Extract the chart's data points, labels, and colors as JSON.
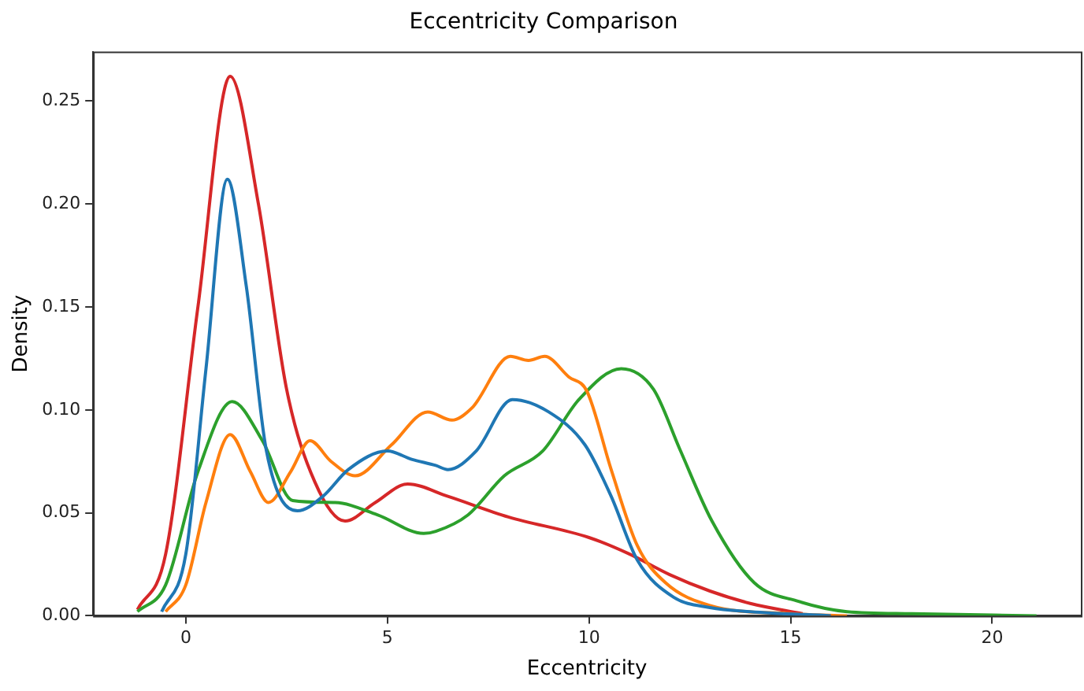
{
  "chart_data": {
    "type": "line",
    "title": "Eccentricity Comparison",
    "xlabel": "Eccentricity",
    "ylabel": "Density",
    "xlim": [
      -2.3,
      22.2
    ],
    "ylim": [
      0,
      0.274
    ],
    "xticks": [
      0,
      5,
      10,
      15,
      20
    ],
    "yticks": [
      {
        "value": 0,
        "label": "0.00"
      },
      {
        "value": 0.05,
        "label": "0.05"
      },
      {
        "value": 0.1,
        "label": "0.10"
      },
      {
        "value": 0.15,
        "label": "0.15"
      },
      {
        "value": 0.2,
        "label": "0.20"
      },
      {
        "value": 0.25,
        "label": "0.25"
      }
    ],
    "grid": false,
    "legend": false,
    "series": [
      {
        "color": "#1f77b4",
        "x": [
          -0.6,
          0,
          0.5,
          1.03,
          1.5,
          2,
          2.77,
          3.4,
          4.03,
          5.0,
          5.6,
          6.2,
          6.5,
          7.2,
          8.1,
          9.0,
          9.9,
          10.55,
          11.2,
          12.1,
          13,
          14,
          16
        ],
        "values": [
          0.002,
          0.03,
          0.12,
          0.212,
          0.16,
          0.08,
          0.051,
          0.058,
          0.071,
          0.08,
          0.076,
          0.073,
          0.071,
          0.08,
          0.105,
          0.099,
          0.083,
          0.058,
          0.027,
          0.009,
          0.004,
          0.002,
          0
        ]
      },
      {
        "color": "#ff7f0e",
        "x": [
          -0.5,
          0,
          0.5,
          1.1,
          1.6,
          2.05,
          2.6,
          3.08,
          3.6,
          4.2,
          5.1,
          6.0,
          6.6,
          7.1,
          8.05,
          8.5,
          8.9,
          9.5,
          9.95,
          10.55,
          11.2,
          11.9,
          13,
          15,
          16.4
        ],
        "values": [
          0.002,
          0.015,
          0.055,
          0.088,
          0.07,
          0.055,
          0.07,
          0.085,
          0.075,
          0.068,
          0.083,
          0.099,
          0.095,
          0.101,
          0.126,
          0.124,
          0.126,
          0.116,
          0.109,
          0.071,
          0.034,
          0.016,
          0.005,
          0.001,
          0
        ]
      },
      {
        "color": "#2ca02c",
        "x": [
          -1.2,
          -0.5,
          0.3,
          1.15,
          1.9,
          2.65,
          3.7,
          4.75,
          5.9,
          6.2,
          7.0,
          7.9,
          8.85,
          9.75,
          10.8,
          11.6,
          12.25,
          13.05,
          14.1,
          15.2,
          16.4,
          18,
          21.1
        ],
        "values": [
          0.002,
          0.015,
          0.07,
          0.104,
          0.085,
          0.056,
          0.055,
          0.049,
          0.04,
          0.041,
          0.049,
          0.068,
          0.08,
          0.105,
          0.12,
          0.11,
          0.081,
          0.046,
          0.016,
          0.007,
          0.002,
          0.001,
          0
        ]
      },
      {
        "color": "#d62728",
        "x": [
          -1.2,
          -0.5,
          0.3,
          1.1,
          1.8,
          2.5,
          3.2,
          3.95,
          4.7,
          5.5,
          6.5,
          8,
          10,
          11,
          12,
          13,
          14,
          15.3
        ],
        "values": [
          0.003,
          0.03,
          0.15,
          0.262,
          0.2,
          0.11,
          0.065,
          0.046,
          0.055,
          0.064,
          0.058,
          0.048,
          0.038,
          0.03,
          0.02,
          0.012,
          0.006,
          0.001
        ]
      }
    ]
  }
}
